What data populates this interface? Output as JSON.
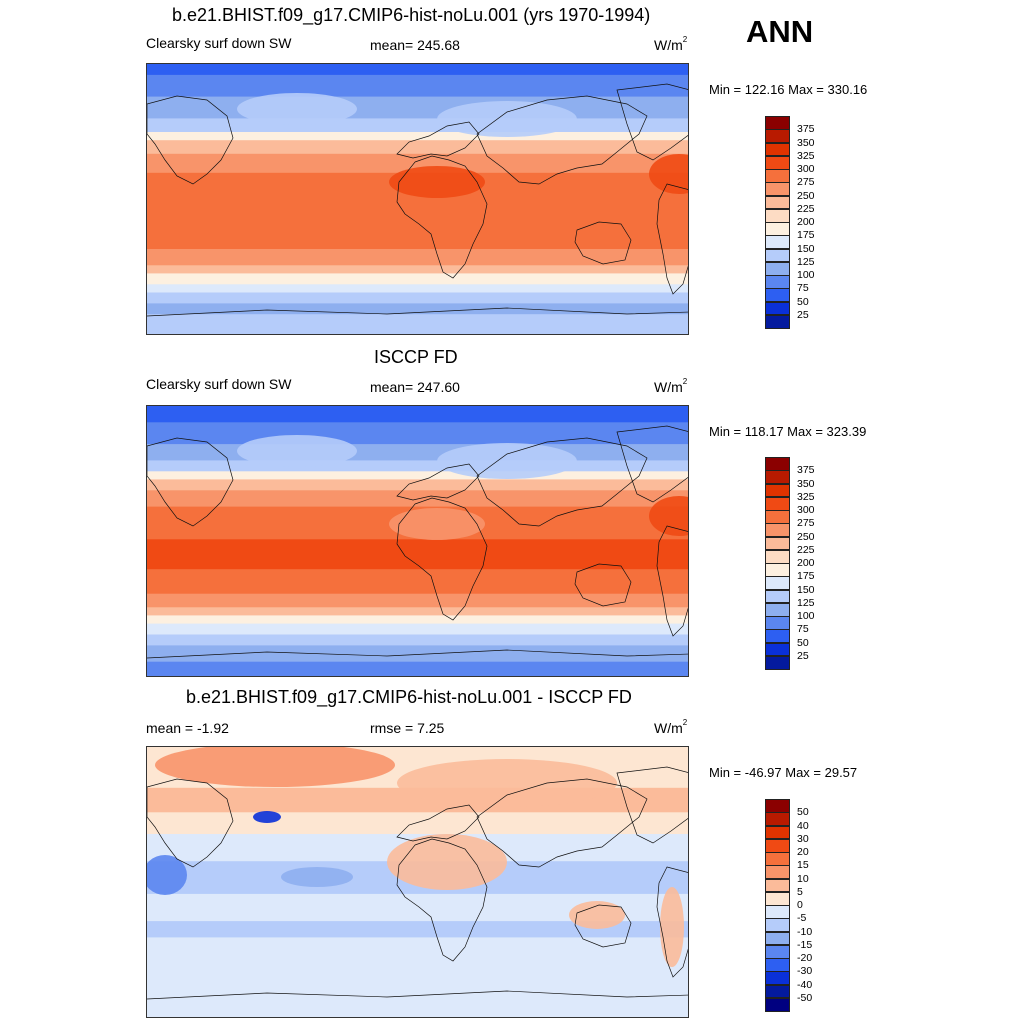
{
  "season": "ANN",
  "panels": [
    {
      "title": "b.e21.BHIST.f09_g17.CMIP6-hist-noLu.001 (yrs 1970-1994)",
      "variable": "Clearsky surf down SW",
      "stat": "mean= 245.68",
      "units": "W/m",
      "units_sup": "2",
      "minmax": "Min = 122.16 Max = 330.16",
      "levels": [
        "375",
        "350",
        "325",
        "300",
        "275",
        "250",
        "225",
        "200",
        "175",
        "150",
        "125",
        "100",
        "75",
        "50",
        "25"
      ],
      "colors": [
        "#8b0000",
        "#b81a00",
        "#e03300",
        "#f04a14",
        "#f5703c",
        "#f8946a",
        "#fbbb9a",
        "#fddcc4",
        "#fdf0e0",
        "#dde9fb",
        "#b5ccfa",
        "#8eafef",
        "#5b86f0",
        "#2d5ff2",
        "#0a30d8",
        "#041a9e"
      ],
      "field_colors": {
        "polar": "#5b86f0",
        "cold": "#8eafef",
        "cool": "#b5ccfa",
        "mild": "#dde9fb",
        "warm": "#fbbb9a",
        "hot": "#f8946a",
        "tropic": "#f5703c",
        "peak": "#f04a14"
      }
    },
    {
      "title": "ISCCP FD",
      "variable": "Clearsky surf down SW",
      "stat": "mean= 247.60",
      "units": "W/m",
      "units_sup": "2",
      "minmax": "Min = 118.17 Max = 323.39",
      "levels": [
        "375",
        "350",
        "325",
        "300",
        "275",
        "250",
        "225",
        "200",
        "175",
        "150",
        "125",
        "100",
        "75",
        "50",
        "25"
      ],
      "colors": [
        "#8b0000",
        "#b81a00",
        "#e03300",
        "#f04a14",
        "#f5703c",
        "#f8946a",
        "#fbbb9a",
        "#fddcc4",
        "#fdf0e0",
        "#dde9fb",
        "#b5ccfa",
        "#8eafef",
        "#5b86f0",
        "#2d5ff2",
        "#0a30d8",
        "#041a9e"
      ]
    },
    {
      "title": "b.e21.BHIST.f09_g17.CMIP6-hist-noLu.001 - ISCCP FD",
      "stat": "mean =  -1.92",
      "rmse": "rmse =   7.25",
      "units": "W/m",
      "units_sup": "2",
      "minmax": "Min = -46.97 Max =  29.57",
      "levels": [
        "50",
        "40",
        "30",
        "20",
        "15",
        "10",
        "5",
        "0",
        "-5",
        "-10",
        "-15",
        "-20",
        "-30",
        "-40",
        "-50"
      ],
      "colors": [
        "#8b0000",
        "#b81a00",
        "#e03300",
        "#f04a14",
        "#f5703c",
        "#f8946a",
        "#fbbb9a",
        "#fde6d2",
        "#dde9fb",
        "#b5ccfa",
        "#8eafef",
        "#5b86f0",
        "#2d5ff2",
        "#0a30d8",
        "#041a9e",
        "#000080"
      ]
    }
  ]
}
